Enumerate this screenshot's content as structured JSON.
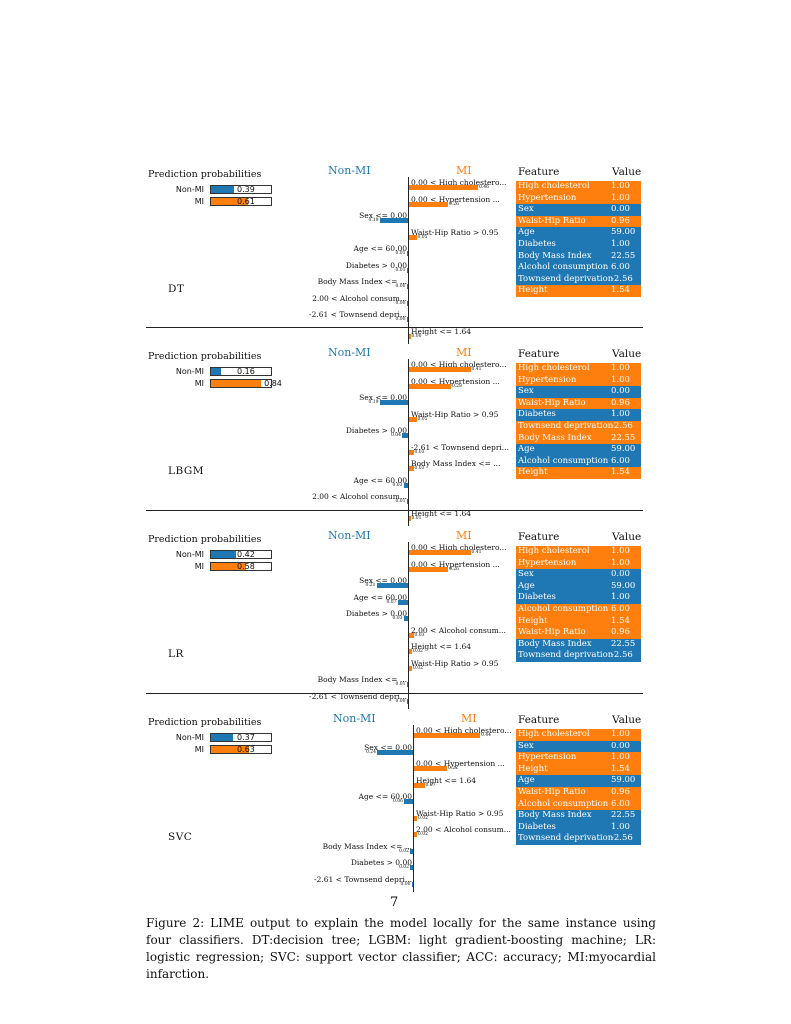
{
  "colors": {
    "nonmi": "#1f77b4",
    "mi": "#ff7f0e"
  },
  "panels": [
    {
      "model": "DT",
      "prob_title": "Prediction probabilities",
      "probs": [
        {
          "label": "Non-MI",
          "value": 0.39,
          "text": "0.39"
        },
        {
          "label": "MI",
          "value": 0.61,
          "text": "0.61"
        }
      ],
      "head_nonmi": "Non-MI",
      "head_mi": "MI",
      "bars": [
        {
          "label": "0.00 < High cholestero...",
          "value": 0.46,
          "text": "0.46",
          "class": "mi"
        },
        {
          "label": "0.00 < Hypertension ...",
          "value": 0.26,
          "text": "0.26",
          "class": "mi"
        },
        {
          "label": "Sex <= 0.00",
          "value": 0.19,
          "text": "0.19",
          "class": "nonmi"
        },
        {
          "label": "Waist-Hip Ratio > 0.95",
          "value": 0.05,
          "text": "0.05",
          "class": "mi"
        },
        {
          "label": "Age <= 60.00",
          "value": 0.01,
          "text": "0.01",
          "class": "nonmi"
        },
        {
          "label": "Diabetes > 0.00",
          "value": 0.01,
          "text": "0.01",
          "class": "nonmi"
        },
        {
          "label": "Body Mass Index <= ...",
          "value": 0.0,
          "text": "0.00",
          "class": "nonmi"
        },
        {
          "label": "2.00 < Alcohol consum...",
          "value": 0.0,
          "text": "0.00",
          "class": "nonmi"
        },
        {
          "label": "-2.61 < Townsend depri...",
          "value": 0.0,
          "text": "0.00",
          "class": "nonmi"
        },
        {
          "label": "Height <= 1.64",
          "value": 0.0,
          "text": "0.00",
          "class": "mi"
        }
      ],
      "table_head": {
        "feature": "Feature",
        "value": "Value"
      },
      "table": [
        {
          "feature": "High cholesterol",
          "value": "1.00",
          "class": "mi"
        },
        {
          "feature": "Hypertension",
          "value": "1.00",
          "class": "mi"
        },
        {
          "feature": "Sex",
          "value": "0.00",
          "class": "nonmi"
        },
        {
          "feature": "Waist-Hip Ratio",
          "value": "0.96",
          "class": "mi"
        },
        {
          "feature": "Age",
          "value": "59.00",
          "class": "nonmi"
        },
        {
          "feature": "Diabetes",
          "value": "1.00",
          "class": "nonmi"
        },
        {
          "feature": "Body Mass Index",
          "value": "22.55",
          "class": "nonmi"
        },
        {
          "feature": "Alcohol consumption",
          "value": "6.00",
          "class": "nonmi"
        },
        {
          "feature": "Townsend deprivation",
          "value": "-2.56",
          "class": "nonmi"
        },
        {
          "feature": "Height",
          "value": "1.54",
          "class": "mi"
        }
      ]
    },
    {
      "model": "LBGM",
      "prob_title": "Prediction probabilities",
      "probs": [
        {
          "label": "Non-MI",
          "value": 0.16,
          "text": "0.16"
        },
        {
          "label": "MI",
          "value": 0.84,
          "text": "0.84"
        }
      ],
      "head_nonmi": "Non-MI",
      "head_mi": "MI",
      "bars": [
        {
          "label": "0.00 < High cholestero...",
          "value": 0.41,
          "text": "0.41",
          "class": "mi"
        },
        {
          "label": "0.00 < Hypertension ...",
          "value": 0.28,
          "text": "0.28",
          "class": "mi"
        },
        {
          "label": "Sex <= 0.00",
          "value": 0.19,
          "text": "0.19",
          "class": "nonmi"
        },
        {
          "label": "Waist-Hip Ratio > 0.95",
          "value": 0.05,
          "text": "0.05",
          "class": "mi"
        },
        {
          "label": "Diabetes > 0.00",
          "value": 0.04,
          "text": "0.04",
          "class": "nonmi"
        },
        {
          "label": "-2.61 < Townsend depri...",
          "value": 0.03,
          "text": "0.03",
          "class": "mi"
        },
        {
          "label": "Body Mass Index <= ...",
          "value": 0.03,
          "text": "0.03",
          "class": "mi"
        },
        {
          "label": "Age <= 60.00",
          "value": 0.03,
          "text": "0.03",
          "class": "nonmi"
        },
        {
          "label": "2.00 < Alcohol consum...",
          "value": 0.01,
          "text": "0.01",
          "class": "nonmi"
        },
        {
          "label": "Height <= 1.64",
          "value": 0.01,
          "text": "0.01",
          "class": "mi"
        }
      ],
      "table_head": {
        "feature": "Feature",
        "value": "Value"
      },
      "table": [
        {
          "feature": "High cholesterol",
          "value": "1.00",
          "class": "mi"
        },
        {
          "feature": "Hypertension",
          "value": "1.00",
          "class": "mi"
        },
        {
          "feature": "Sex",
          "value": "0.00",
          "class": "nonmi"
        },
        {
          "feature": "Waist-Hip Ratio",
          "value": "0.96",
          "class": "mi"
        },
        {
          "feature": "Diabetes",
          "value": "1.00",
          "class": "nonmi"
        },
        {
          "feature": "Townsend deprivation",
          "value": "-2.56",
          "class": "mi"
        },
        {
          "feature": "Body Mass Index",
          "value": "22.55",
          "class": "mi"
        },
        {
          "feature": "Age",
          "value": "59.00",
          "class": "nonmi"
        },
        {
          "feature": "Alcohol consumption",
          "value": "6.00",
          "class": "nonmi"
        },
        {
          "feature": "Height",
          "value": "1.54",
          "class": "mi"
        }
      ]
    },
    {
      "model": "LR",
      "prob_title": "Prediction probabilities",
      "probs": [
        {
          "label": "Non-MI",
          "value": 0.42,
          "text": "0.42"
        },
        {
          "label": "MI",
          "value": 0.58,
          "text": "0.58"
        }
      ],
      "head_nonmi": "Non-MI",
      "head_mi": "MI",
      "bars": [
        {
          "label": "0.00 < High cholestero...",
          "value": 0.41,
          "text": "0.41",
          "class": "mi"
        },
        {
          "label": "0.00 < Hypertension ...",
          "value": 0.26,
          "text": "0.26",
          "class": "mi"
        },
        {
          "label": "Sex <= 0.00",
          "value": 0.21,
          "text": "0.21",
          "class": "nonmi"
        },
        {
          "label": "Age <= 60.00",
          "value": 0.07,
          "text": "0.07",
          "class": "nonmi"
        },
        {
          "label": "Diabetes > 0.00",
          "value": 0.03,
          "text": "0.03",
          "class": "nonmi"
        },
        {
          "label": "2.00 < Alcohol consum...",
          "value": 0.03,
          "text": "0.03",
          "class": "mi"
        },
        {
          "label": "Height <= 1.64",
          "value": 0.02,
          "text": "0.02",
          "class": "mi"
        },
        {
          "label": "Waist-Hip Ratio > 0.95",
          "value": 0.02,
          "text": "0.02",
          "class": "mi"
        },
        {
          "label": "Body Mass Index <= ...",
          "value": 0.01,
          "text": "0.01",
          "class": "nonmi"
        },
        {
          "label": "-2.61 < Townsend depri...",
          "value": 0.0,
          "text": "0.00",
          "class": "nonmi"
        }
      ],
      "table_head": {
        "feature": "Feature",
        "value": "Value"
      },
      "table": [
        {
          "feature": "High cholesterol",
          "value": "1.00",
          "class": "mi"
        },
        {
          "feature": "Hypertension",
          "value": "1.00",
          "class": "mi"
        },
        {
          "feature": "Sex",
          "value": "0.00",
          "class": "nonmi"
        },
        {
          "feature": "Age",
          "value": "59.00",
          "class": "nonmi"
        },
        {
          "feature": "Diabetes",
          "value": "1.00",
          "class": "nonmi"
        },
        {
          "feature": "Alcohol consumption",
          "value": "6.00",
          "class": "mi"
        },
        {
          "feature": "Height",
          "value": "1.54",
          "class": "mi"
        },
        {
          "feature": "Waist-Hip Ratio",
          "value": "0.96",
          "class": "mi"
        },
        {
          "feature": "Body Mass Index",
          "value": "22.55",
          "class": "nonmi"
        },
        {
          "feature": "Townsend deprivation",
          "value": "-2.56",
          "class": "nonmi"
        }
      ]
    },
    {
      "model": "SVC",
      "prob_title": "Prediction probabilities",
      "probs": [
        {
          "label": "Non-MI",
          "value": 0.37,
          "text": "0.37"
        },
        {
          "label": "MI",
          "value": 0.63,
          "text": "0.63"
        }
      ],
      "head_nonmi": "Non-MI",
      "head_mi": "MI",
      "bars": [
        {
          "label": "0.00 < High cholestero...",
          "value": 0.44,
          "text": "0.44",
          "class": "mi"
        },
        {
          "label": "Sex <= 0.00",
          "value": 0.24,
          "text": "0.24",
          "class": "nonmi"
        },
        {
          "label": "0.00 < Hypertension ...",
          "value": 0.22,
          "text": "0.22",
          "class": "mi"
        },
        {
          "label": "Height <= 1.64",
          "value": 0.07,
          "text": "0.07",
          "class": "mi"
        },
        {
          "label": "Age <= 60.00",
          "value": 0.06,
          "text": "0.06",
          "class": "nonmi"
        },
        {
          "label": "Waist-Hip Ratio > 0.95",
          "value": 0.02,
          "text": "0.02",
          "class": "mi"
        },
        {
          "label": "2.00 < Alcohol consum...",
          "value": 0.02,
          "text": "0.02",
          "class": "mi"
        },
        {
          "label": "Body Mass Index <= ...",
          "value": 0.02,
          "text": "0.02",
          "class": "nonmi"
        },
        {
          "label": "Diabetes > 0.00",
          "value": 0.02,
          "text": "0.02",
          "class": "nonmi"
        },
        {
          "label": "-2.61 < Townsend depri...",
          "value": 0.0,
          "text": "0.00",
          "class": "nonmi"
        }
      ],
      "table_head": {
        "feature": "Feature",
        "value": "Value"
      },
      "table": [
        {
          "feature": "High cholesterol",
          "value": "1.00",
          "class": "mi"
        },
        {
          "feature": "Sex",
          "value": "0.00",
          "class": "nonmi"
        },
        {
          "feature": "Hypertension",
          "value": "1.00",
          "class": "mi"
        },
        {
          "feature": "Height",
          "value": "1.54",
          "class": "mi"
        },
        {
          "feature": "Age",
          "value": "59.00",
          "class": "nonmi"
        },
        {
          "feature": "Waist-Hip Ratio",
          "value": "0.96",
          "class": "mi"
        },
        {
          "feature": "Alcohol consumption",
          "value": "6.00",
          "class": "mi"
        },
        {
          "feature": "Body Mass Index",
          "value": "22.55",
          "class": "nonmi"
        },
        {
          "feature": "Diabetes",
          "value": "1.00",
          "class": "nonmi"
        },
        {
          "feature": "Townsend deprivation",
          "value": "-2.56",
          "class": "nonmi"
        }
      ]
    }
  ],
  "page_number": "7",
  "caption": "Figure 2: LIME output to explain the model locally for the same instance using four classifiers. DT:decision tree; LGBM: light gradient-boosting machine; LR: logistic regression; SVC: support vector classifier; ACC: accuracy; MI:myocardial infarction."
}
